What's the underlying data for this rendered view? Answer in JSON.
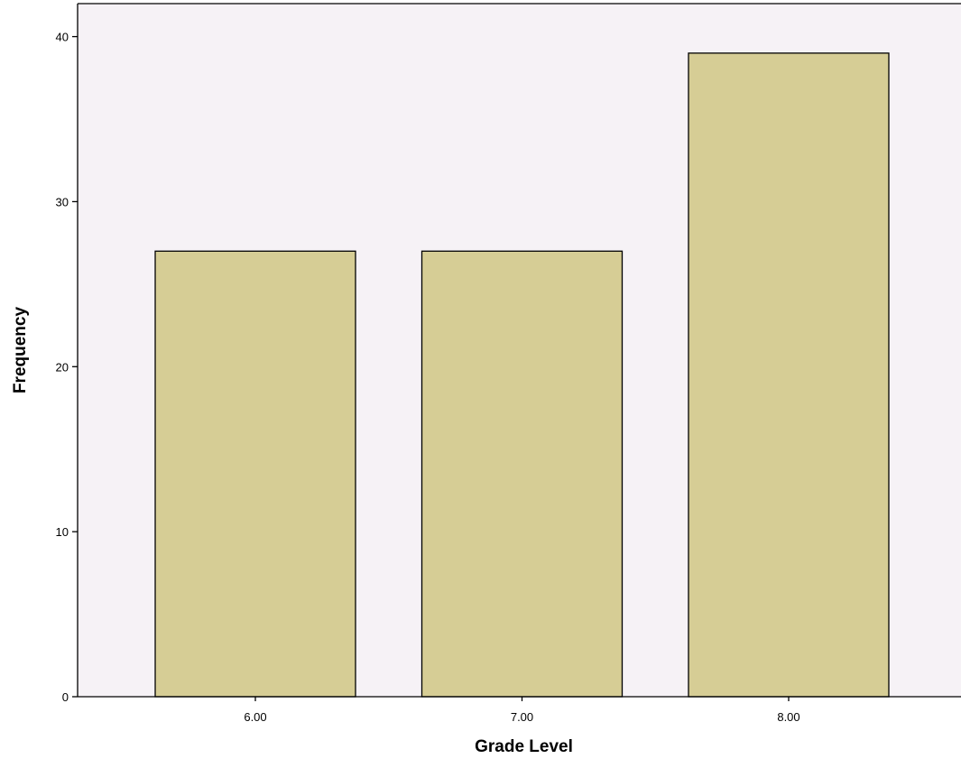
{
  "chart_data": {
    "type": "bar",
    "title": "",
    "xlabel": "Grade Level",
    "ylabel": "Frequency",
    "categories": [
      "6.00",
      "7.00",
      "8.00"
    ],
    "values": [
      27,
      27,
      39
    ],
    "ylim": [
      0,
      42
    ],
    "yticks": [
      0,
      10,
      20,
      30,
      40
    ],
    "grid": false,
    "colors": {
      "plot_background": "#f6f2f6",
      "bar_fill": "#d6cd95",
      "bar_stroke": "#000000",
      "axis": "#000000"
    }
  }
}
